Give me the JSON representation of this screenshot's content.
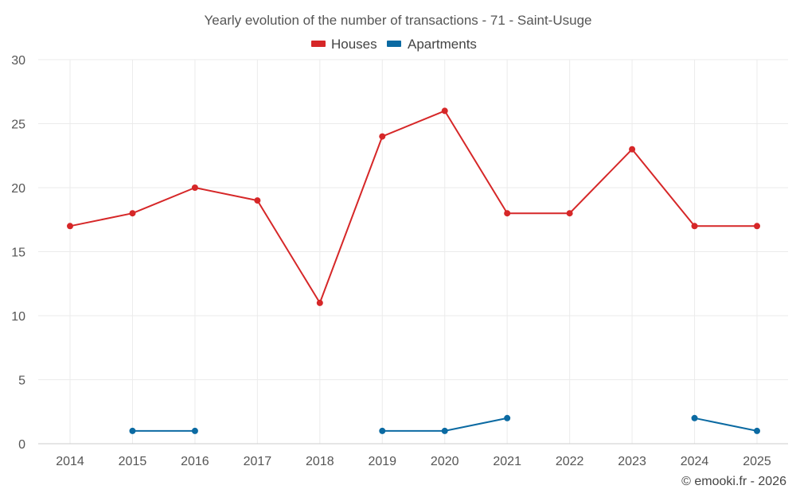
{
  "chart_data": {
    "type": "line",
    "title": "Yearly evolution of the number of transactions - 71 - Saint-Usuge",
    "categories": [
      "2014",
      "2015",
      "2016",
      "2017",
      "2018",
      "2019",
      "2020",
      "2021",
      "2022",
      "2023",
      "2024",
      "2025"
    ],
    "series": [
      {
        "name": "Houses",
        "color": "#d62728",
        "values": [
          17,
          18,
          20,
          19,
          11,
          24,
          26,
          18,
          18,
          23,
          17,
          17
        ]
      },
      {
        "name": "Apartments",
        "color": "#0b6aa2",
        "values": [
          null,
          1,
          1,
          null,
          null,
          1,
          1,
          2,
          null,
          null,
          2,
          1
        ]
      }
    ],
    "ylim": [
      0,
      30
    ],
    "yticks": [
      0,
      5,
      10,
      15,
      20,
      25,
      30
    ],
    "xlabel": "",
    "ylabel": "",
    "grid": true,
    "legend_position": "top-center"
  },
  "credit": "© emooki.fr - 2026"
}
